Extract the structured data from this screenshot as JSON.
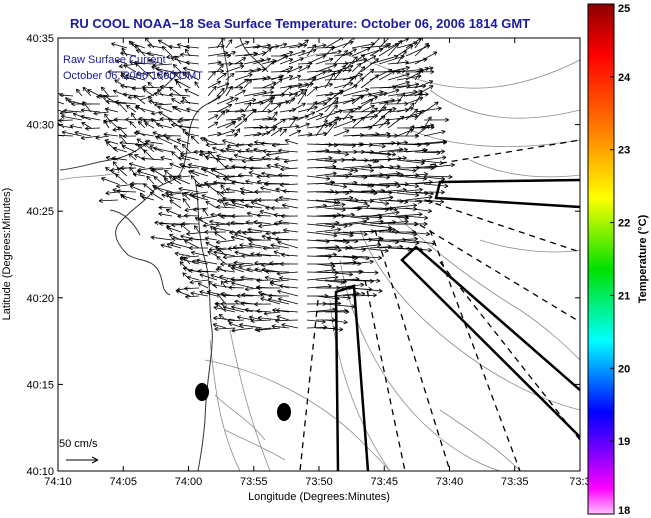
{
  "title": "RU COOL  NOAA−18  Sea Surface Temperature:  October 06, 2006 1814 GMT",
  "annotation": {
    "line1": "Raw Surface Current",
    "line2": "October 06, 2006 1800 GMT"
  },
  "scale_label": "50 cm/s",
  "x_axis": {
    "label": "Longitude (Degrees:Minutes)",
    "ticks": [
      "74:10",
      "74:05",
      "74:00",
      "73:55",
      "73:50",
      "73:45",
      "73:40",
      "73:35",
      "73:3"
    ]
  },
  "y_axis": {
    "label": "Latitude (Degrees:Minutes)",
    "ticks": [
      "40:35",
      "40:30",
      "40:25",
      "40:20",
      "40:15",
      "40:10"
    ]
  },
  "colorbar": {
    "label": "Temperature (°C)",
    "ticks": [
      "25",
      "24",
      "23",
      "22",
      "21",
      "20",
      "19",
      "18"
    ],
    "stops": [
      "#8b0000",
      "#ff0000",
      "#ff8000",
      "#ffff00",
      "#00e000",
      "#00ffff",
      "#0000ff",
      "#8000ff",
      "#ff00ff",
      "#ffc0ff"
    ]
  }
}
